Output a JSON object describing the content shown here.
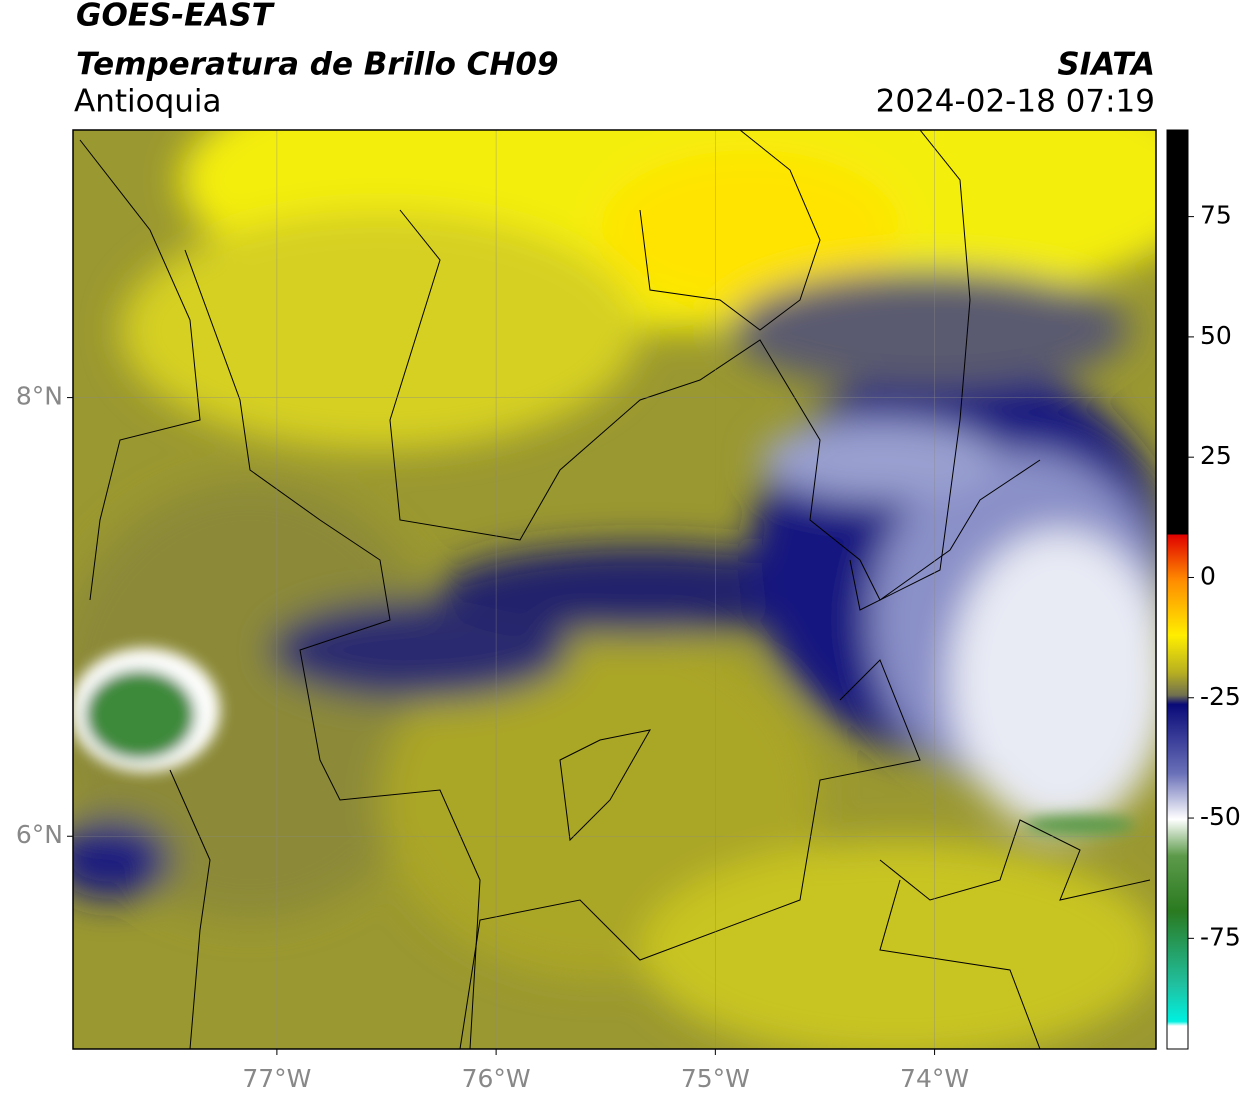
{
  "header": {
    "title": "GOES-EAST",
    "subtitle": "Temperatura de Brillo CH09",
    "region": "Antioquia",
    "source": "SIATA",
    "datetime": "2024-02-18 07:19"
  },
  "map": {
    "lonlim": [
      -77.93,
      -72.99
    ],
    "latlim": [
      5.03,
      9.22
    ],
    "lonticks": [
      {
        "value": -77,
        "label": "77°W"
      },
      {
        "value": -76,
        "label": "76°W"
      },
      {
        "value": -75,
        "label": "75°W"
      },
      {
        "value": -74,
        "label": "74°W"
      }
    ],
    "latticks": [
      {
        "value": 6,
        "label": "6°N"
      },
      {
        "value": 8,
        "label": "8°N"
      }
    ],
    "grid": true
  },
  "colorbar": {
    "lim": [
      -98,
      93
    ],
    "ticks": [
      -75,
      -50,
      -25,
      0,
      25,
      50,
      75
    ]
  }
}
